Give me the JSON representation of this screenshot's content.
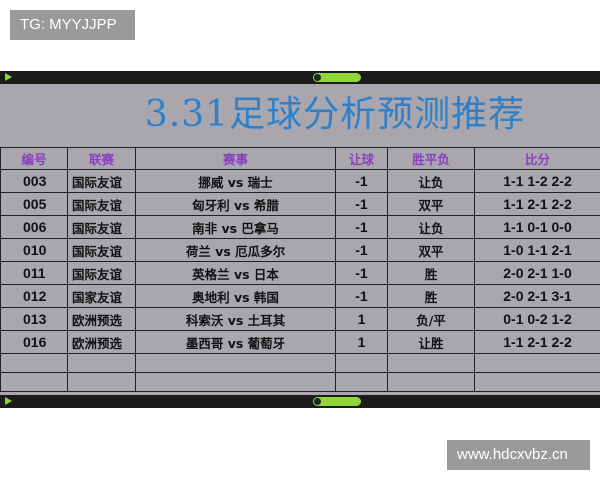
{
  "watermarks": {
    "top_left": "TG: MYYJJPP",
    "bottom_right": "www.hdcxvbz.cn"
  },
  "colors": {
    "title": "#2f80c8",
    "header": "#8a3fc0",
    "background": "#a9a7ad",
    "player_accent": "#8fd63a"
  },
  "title": "3.31足球分析预测推荐",
  "table": {
    "headers": [
      "编号",
      "联赛",
      "赛事",
      "让球",
      "胜平负",
      "比分"
    ],
    "rows": [
      {
        "id": "003",
        "league": "国际友谊",
        "match": "挪威 vs 瑞士",
        "handicap": "-1",
        "result": "让负",
        "scores": "1-1  1-2  2-2"
      },
      {
        "id": "005",
        "league": "国际友谊",
        "match": "匈牙利 vs 希腊",
        "handicap": "-1",
        "result": "双平",
        "scores": "1-1  2-1  2-2"
      },
      {
        "id": "006",
        "league": "国际友谊",
        "match": "南非 vs 巴拿马",
        "handicap": "-1",
        "result": "让负",
        "scores": "1-1  0-1  0-0"
      },
      {
        "id": "010",
        "league": "国际友谊",
        "match": "荷兰 vs 厄瓜多尔",
        "handicap": "-1",
        "result": "双平",
        "scores": "1-0  1-1  2-1"
      },
      {
        "id": "011",
        "league": "国际友谊",
        "match": "英格兰 vs 日本",
        "handicap": "-1",
        "result": "胜",
        "scores": "2-0  2-1  1-0"
      },
      {
        "id": "012",
        "league": "国家友谊",
        "match": "奥地利 vs 韩国",
        "handicap": "-1",
        "result": "胜",
        "scores": "2-0  2-1  3-1"
      },
      {
        "id": "013",
        "league": "欧洲预选",
        "match": "科索沃 vs 土耳其",
        "handicap": "1",
        "result": "负/平",
        "scores": "0-1  0-2  1-2"
      },
      {
        "id": "016",
        "league": "欧洲预选",
        "match": "墨西哥 vs 葡萄牙",
        "handicap": "1",
        "result": "让胜",
        "scores": "1-1  2-1  2-2"
      }
    ]
  }
}
